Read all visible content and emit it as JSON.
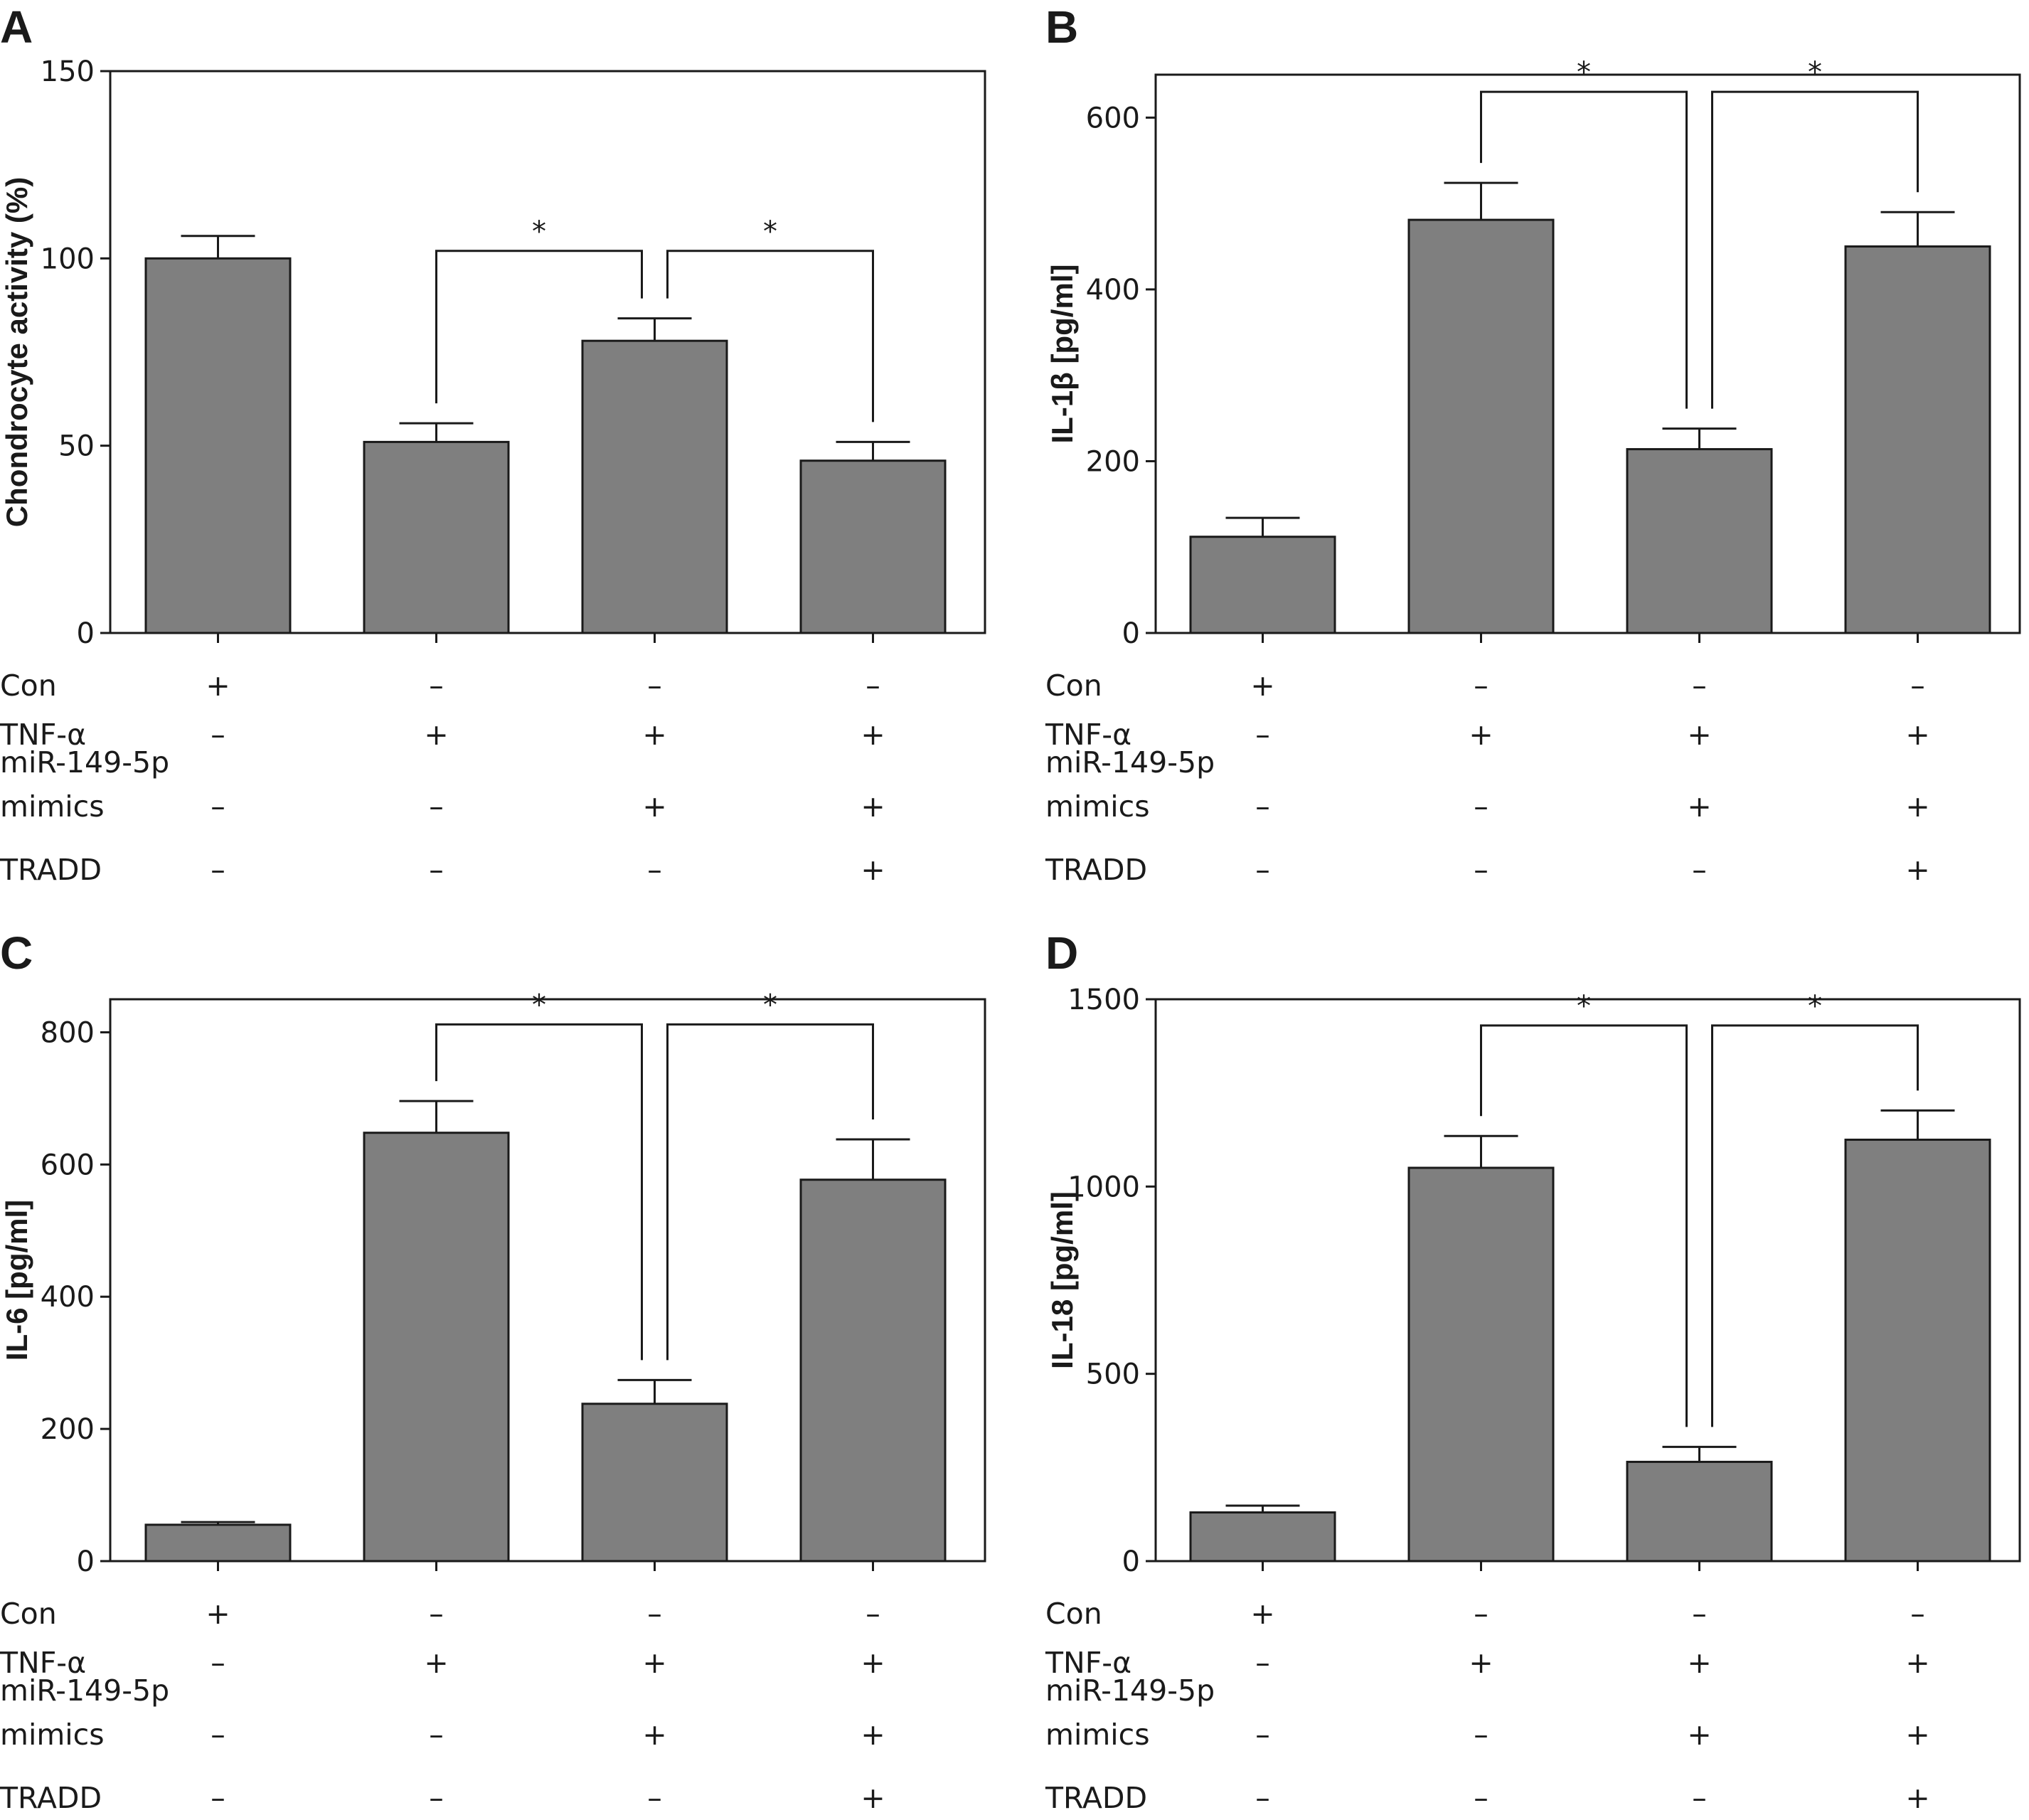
{
  "chart_data": [
    {
      "type": "bar",
      "panel": "A",
      "ylabel": "Chondrocyte activity (%)",
      "ylim": [
        0,
        150
      ],
      "yticks": [
        0,
        50,
        100,
        150
      ],
      "categories": [
        "1",
        "2",
        "3",
        "4"
      ],
      "values": [
        100,
        51,
        78,
        46
      ],
      "errors": [
        6,
        5,
        6,
        5
      ],
      "significance": [
        {
          "from": 1,
          "to": 2,
          "label": "*",
          "level": 102
        },
        {
          "from": 2,
          "to": 3,
          "label": "*",
          "level": 102
        }
      ],
      "conditions": [
        {
          "label": "Con",
          "signs": [
            "+",
            "–",
            "–",
            "–"
          ]
        },
        {
          "label": "TNF-α",
          "signs": [
            "–",
            "+",
            "+",
            "+"
          ]
        },
        {
          "label": "miR-149-5p\nmimics",
          "signs": [
            "–",
            "–",
            "+",
            "+"
          ]
        },
        {
          "label": "TRADD",
          "signs": [
            "–",
            "–",
            "–",
            "+"
          ]
        }
      ]
    },
    {
      "type": "bar",
      "panel": "B",
      "ylabel": "IL-1β [pg/ml]",
      "ylim": [
        0,
        650
      ],
      "yticks": [
        0,
        200,
        400,
        600
      ],
      "categories": [
        "1",
        "2",
        "3",
        "4"
      ],
      "values": [
        112,
        481,
        214,
        450
      ],
      "errors": [
        22,
        43,
        24,
        40
      ],
      "significance": [
        {
          "from": 1,
          "to": 2,
          "label": "*",
          "level": 630
        },
        {
          "from": 2,
          "to": 3,
          "label": "*",
          "level": 630
        }
      ],
      "conditions": [
        {
          "label": "Con",
          "signs": [
            "+",
            "–",
            "–",
            "–"
          ]
        },
        {
          "label": "TNF-α",
          "signs": [
            "–",
            "+",
            "+",
            "+"
          ]
        },
        {
          "label": "miR-149-5p\nmimics",
          "signs": [
            "–",
            "–",
            "+",
            "+"
          ]
        },
        {
          "label": "TRADD",
          "signs": [
            "–",
            "–",
            "–",
            "+"
          ]
        }
      ]
    },
    {
      "type": "bar",
      "panel": "C",
      "ylabel": "IL-6 [pg/ml]",
      "ylim": [
        0,
        850
      ],
      "yticks": [
        0,
        200,
        400,
        600,
        800
      ],
      "categories": [
        "1",
        "2",
        "3",
        "4"
      ],
      "values": [
        55,
        648,
        238,
        577
      ],
      "errors": [
        4,
        48,
        36,
        61
      ],
      "significance": [
        {
          "from": 1,
          "to": 2,
          "label": "*",
          "level": 812
        },
        {
          "from": 2,
          "to": 3,
          "label": "*",
          "level": 812
        }
      ],
      "conditions": [
        {
          "label": "Con",
          "signs": [
            "+",
            "–",
            "–",
            "–"
          ]
        },
        {
          "label": "TNF-α",
          "signs": [
            "–",
            "+",
            "+",
            "+"
          ]
        },
        {
          "label": "miR-149-5p\nmimics",
          "signs": [
            "–",
            "–",
            "+",
            "+"
          ]
        },
        {
          "label": "TRADD",
          "signs": [
            "–",
            "–",
            "–",
            "+"
          ]
        }
      ]
    },
    {
      "type": "bar",
      "panel": "D",
      "ylabel": "IL-18 [pg/ml]",
      "ylim": [
        0,
        1500
      ],
      "yticks": [
        0,
        500,
        1000,
        1500
      ],
      "categories": [
        "1",
        "2",
        "3",
        "4"
      ],
      "values": [
        130,
        1050,
        265,
        1125
      ],
      "errors": [
        18,
        85,
        40,
        78
      ],
      "significance": [
        {
          "from": 1,
          "to": 2,
          "label": "*",
          "level": 1430
        },
        {
          "from": 2,
          "to": 3,
          "label": "*",
          "level": 1430
        }
      ],
      "conditions": [
        {
          "label": "Con",
          "signs": [
            "+",
            "–",
            "–",
            "–"
          ]
        },
        {
          "label": "TNF-α",
          "signs": [
            "–",
            "+",
            "+",
            "+"
          ]
        },
        {
          "label": "miR-149-5p\nmimics",
          "signs": [
            "–",
            "–",
            "+",
            "+"
          ]
        },
        {
          "label": "TRADD",
          "signs": [
            "–",
            "–",
            "–",
            "+"
          ]
        }
      ]
    }
  ],
  "colors": {
    "bar": "#7f7f7f",
    "stroke": "#1a1a1a"
  }
}
